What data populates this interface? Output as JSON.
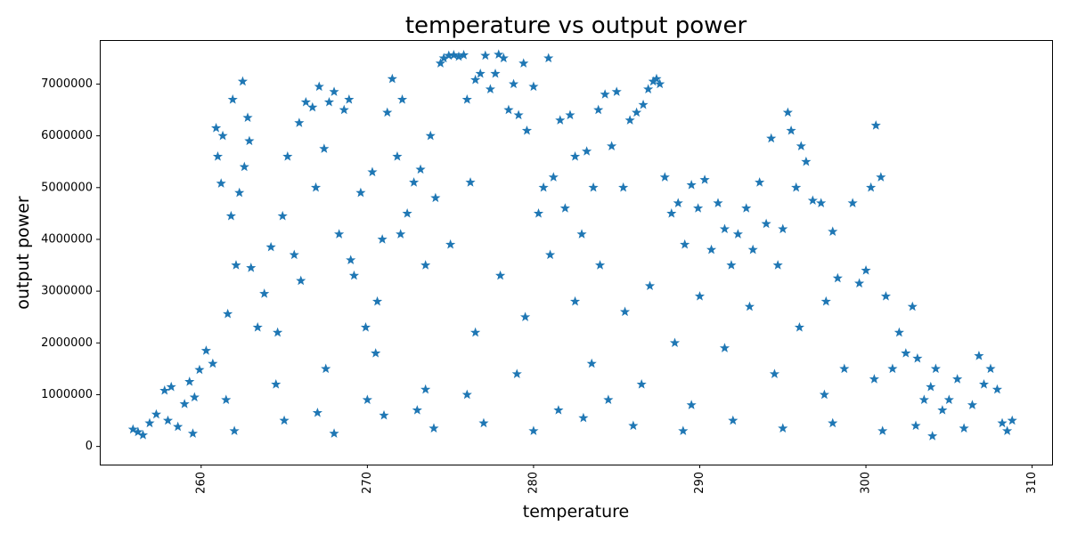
{
  "chart_data": {
    "type": "scatter",
    "title": "temperature vs output power",
    "xlabel": "temperature",
    "ylabel": "output power",
    "xlim": [
      253.9,
      311.2
    ],
    "ylim": [
      -350000,
      7850000
    ],
    "x_ticks": [
      260,
      270,
      280,
      290,
      300,
      310
    ],
    "x_tick_labels": [
      "260",
      "270",
      "280",
      "290",
      "300",
      "310"
    ],
    "y_ticks": [
      0,
      1000000,
      2000000,
      3000000,
      4000000,
      5000000,
      6000000,
      7000000
    ],
    "y_tick_labels": [
      "0",
      "1000000",
      "2000000",
      "3000000",
      "4000000",
      "5000000",
      "6000000",
      "7000000"
    ],
    "x_tick_rotation": 90,
    "marker": "star",
    "color": "#1f77b4",
    "grid": false,
    "legend": "none",
    "points": [
      [
        255.9,
        330000
      ],
      [
        256.2,
        280000
      ],
      [
        256.5,
        220000
      ],
      [
        256.9,
        450000
      ],
      [
        257.3,
        620000
      ],
      [
        257.8,
        1080000
      ],
      [
        258.2,
        1150000
      ],
      [
        258.6,
        380000
      ],
      [
        259.0,
        820000
      ],
      [
        259.3,
        1250000
      ],
      [
        259.6,
        950000
      ],
      [
        259.9,
        1480000
      ],
      [
        260.3,
        1850000
      ],
      [
        260.7,
        1600000
      ],
      [
        260.9,
        6150000
      ],
      [
        261.0,
        5600000
      ],
      [
        261.2,
        5080000
      ],
      [
        261.3,
        6000000
      ],
      [
        261.6,
        2560000
      ],
      [
        261.8,
        4450000
      ],
      [
        261.9,
        6700000
      ],
      [
        262.1,
        3500000
      ],
      [
        262.3,
        4900000
      ],
      [
        262.5,
        7050000
      ],
      [
        262.6,
        5400000
      ],
      [
        262.8,
        6350000
      ],
      [
        262.9,
        5900000
      ],
      [
        263.0,
        3450000
      ],
      [
        263.4,
        2300000
      ],
      [
        263.8,
        2950000
      ],
      [
        264.2,
        3850000
      ],
      [
        264.6,
        2200000
      ],
      [
        264.9,
        4450000
      ],
      [
        265.2,
        5600000
      ],
      [
        265.6,
        3700000
      ],
      [
        265.9,
        6250000
      ],
      [
        266.3,
        6650000
      ],
      [
        266.7,
        6550000
      ],
      [
        266.9,
        5000000
      ],
      [
        267.1,
        6950000
      ],
      [
        267.4,
        5750000
      ],
      [
        267.7,
        6650000
      ],
      [
        268.0,
        6850000
      ],
      [
        268.3,
        4100000
      ],
      [
        268.6,
        6500000
      ],
      [
        268.9,
        6700000
      ],
      [
        269.2,
        3300000
      ],
      [
        269.6,
        4900000
      ],
      [
        269.9,
        2300000
      ],
      [
        270.3,
        5300000
      ],
      [
        270.6,
        2800000
      ],
      [
        270.9,
        4000000
      ],
      [
        271.2,
        6450000
      ],
      [
        271.5,
        7100000
      ],
      [
        271.8,
        5600000
      ],
      [
        272.1,
        6700000
      ],
      [
        272.4,
        4500000
      ],
      [
        272.8,
        5100000
      ],
      [
        273.2,
        5350000
      ],
      [
        273.5,
        3500000
      ],
      [
        273.8,
        6000000
      ],
      [
        274.1,
        4800000
      ],
      [
        274.4,
        7400000
      ],
      [
        274.6,
        7500000
      ],
      [
        274.9,
        7550000
      ],
      [
        275.2,
        7560000
      ],
      [
        275.5,
        7530000
      ],
      [
        275.8,
        7560000
      ],
      [
        276.0,
        6700000
      ],
      [
        276.2,
        5100000
      ],
      [
        276.5,
        7080000
      ],
      [
        276.8,
        7200000
      ],
      [
        277.1,
        7550000
      ],
      [
        277.4,
        6900000
      ],
      [
        277.7,
        7200000
      ],
      [
        277.9,
        7570000
      ],
      [
        278.2,
        7500000
      ],
      [
        278.5,
        6500000
      ],
      [
        278.8,
        7000000
      ],
      [
        279.1,
        6400000
      ],
      [
        279.4,
        7400000
      ],
      [
        279.6,
        6100000
      ],
      [
        280.0,
        6950000
      ],
      [
        280.3,
        4500000
      ],
      [
        280.6,
        5000000
      ],
      [
        280.9,
        7500000
      ],
      [
        281.2,
        5200000
      ],
      [
        281.6,
        6300000
      ],
      [
        281.9,
        4600000
      ],
      [
        282.2,
        6400000
      ],
      [
        282.5,
        5600000
      ],
      [
        282.9,
        4100000
      ],
      [
        283.2,
        5700000
      ],
      [
        283.6,
        5000000
      ],
      [
        283.9,
        6500000
      ],
      [
        284.3,
        6800000
      ],
      [
        284.7,
        5800000
      ],
      [
        285.0,
        6850000
      ],
      [
        285.4,
        5000000
      ],
      [
        285.8,
        6300000
      ],
      [
        286.2,
        6450000
      ],
      [
        286.6,
        6600000
      ],
      [
        286.9,
        6900000
      ],
      [
        287.2,
        7050000
      ],
      [
        287.4,
        7100000
      ],
      [
        287.6,
        7000000
      ],
      [
        287.9,
        5200000
      ],
      [
        288.3,
        4500000
      ],
      [
        288.7,
        4700000
      ],
      [
        289.1,
        3900000
      ],
      [
        289.5,
        5050000
      ],
      [
        289.9,
        4600000
      ],
      [
        290.3,
        5150000
      ],
      [
        290.7,
        3800000
      ],
      [
        291.1,
        4700000
      ],
      [
        291.5,
        4200000
      ],
      [
        291.9,
        3500000
      ],
      [
        292.3,
        4100000
      ],
      [
        292.8,
        4600000
      ],
      [
        293.2,
        3800000
      ],
      [
        293.6,
        5100000
      ],
      [
        294.0,
        4300000
      ],
      [
        294.3,
        5950000
      ],
      [
        294.7,
        3500000
      ],
      [
        295.0,
        4200000
      ],
      [
        295.3,
        6450000
      ],
      [
        295.5,
        6100000
      ],
      [
        295.8,
        5000000
      ],
      [
        296.1,
        5800000
      ],
      [
        296.4,
        5500000
      ],
      [
        296.8,
        4750000
      ],
      [
        297.3,
        4700000
      ],
      [
        297.6,
        2800000
      ],
      [
        298.0,
        4150000
      ],
      [
        298.3,
        3250000
      ],
      [
        298.7,
        1500000
      ],
      [
        299.2,
        4700000
      ],
      [
        299.6,
        3150000
      ],
      [
        300.0,
        3400000
      ],
      [
        300.3,
        5000000
      ],
      [
        300.6,
        6200000
      ],
      [
        300.9,
        5200000
      ],
      [
        301.2,
        2900000
      ],
      [
        301.6,
        1500000
      ],
      [
        302.0,
        2200000
      ],
      [
        302.4,
        1800000
      ],
      [
        302.8,
        2700000
      ],
      [
        303.1,
        1700000
      ],
      [
        303.5,
        900000
      ],
      [
        303.9,
        1150000
      ],
      [
        304.2,
        1500000
      ],
      [
        304.6,
        700000
      ],
      [
        305.0,
        900000
      ],
      [
        305.5,
        1300000
      ],
      [
        305.9,
        350000
      ],
      [
        306.4,
        800000
      ],
      [
        306.8,
        1750000
      ],
      [
        307.1,
        1200000
      ],
      [
        307.5,
        1500000
      ],
      [
        307.9,
        1100000
      ],
      [
        308.2,
        450000
      ],
      [
        308.5,
        300000
      ],
      [
        308.8,
        500000
      ],
      [
        262.0,
        300000
      ],
      [
        265.0,
        500000
      ],
      [
        268.0,
        250000
      ],
      [
        271.0,
        600000
      ],
      [
        274.0,
        350000
      ],
      [
        277.0,
        450000
      ],
      [
        280.0,
        300000
      ],
      [
        283.0,
        550000
      ],
      [
        286.0,
        400000
      ],
      [
        289.0,
        300000
      ],
      [
        292.0,
        500000
      ],
      [
        295.0,
        350000
      ],
      [
        298.0,
        450000
      ],
      [
        301.0,
        300000
      ],
      [
        261.5,
        900000
      ],
      [
        264.5,
        1200000
      ],
      [
        267.5,
        1500000
      ],
      [
        270.5,
        1800000
      ],
      [
        273.5,
        1100000
      ],
      [
        276.5,
        2200000
      ],
      [
        279.5,
        2500000
      ],
      [
        282.5,
        2800000
      ],
      [
        285.5,
        2600000
      ],
      [
        288.5,
        2000000
      ],
      [
        291.5,
        1900000
      ],
      [
        294.5,
        1400000
      ],
      [
        297.5,
        1000000
      ],
      [
        300.5,
        1300000
      ],
      [
        266.0,
        3200000
      ],
      [
        269.0,
        3600000
      ],
      [
        272.0,
        4100000
      ],
      [
        275.0,
        3900000
      ],
      [
        278.0,
        3300000
      ],
      [
        281.0,
        3700000
      ],
      [
        284.0,
        3500000
      ],
      [
        287.0,
        3100000
      ],
      [
        290.0,
        2900000
      ],
      [
        293.0,
        2700000
      ],
      [
        296.0,
        2300000
      ],
      [
        283.5,
        1600000
      ],
      [
        284.5,
        900000
      ],
      [
        279.0,
        1400000
      ],
      [
        281.5,
        700000
      ],
      [
        286.5,
        1200000
      ],
      [
        289.5,
        800000
      ],
      [
        276.0,
        1000000
      ],
      [
        273.0,
        700000
      ],
      [
        270.0,
        900000
      ],
      [
        267.0,
        650000
      ],
      [
        258.0,
        500000
      ],
      [
        259.5,
        250000
      ],
      [
        303.0,
        400000
      ],
      [
        304.0,
        200000
      ]
    ]
  }
}
